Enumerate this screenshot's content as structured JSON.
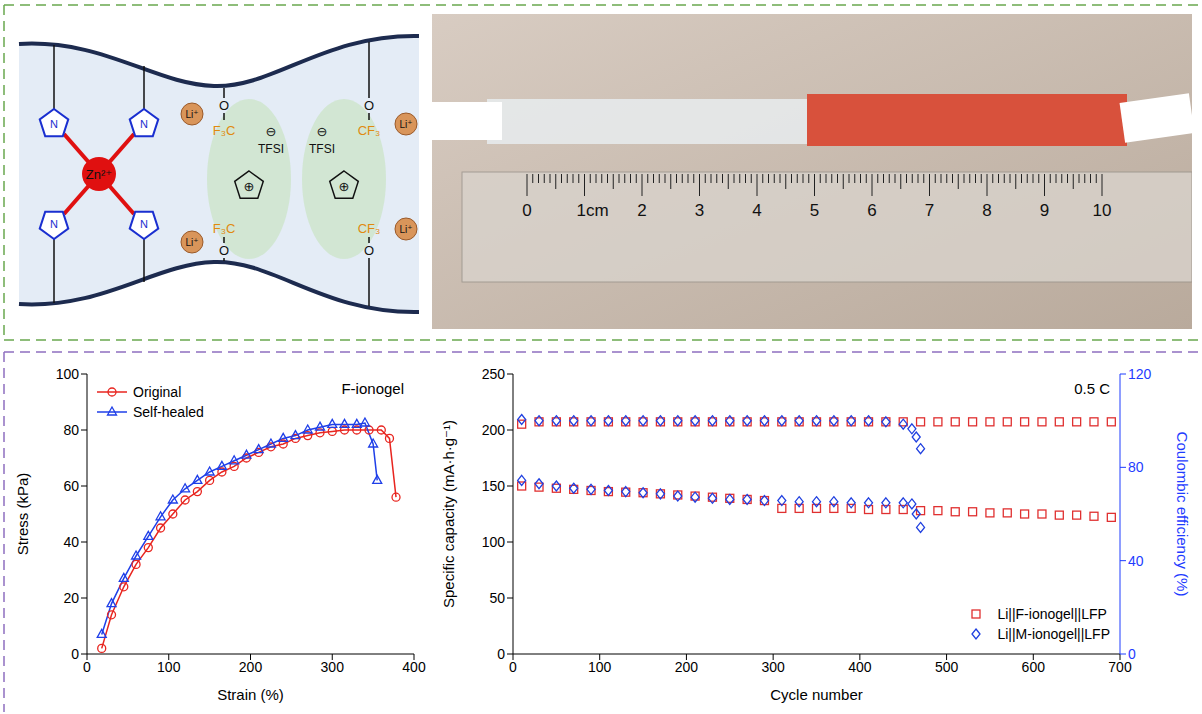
{
  "diagram": {
    "metal_ion": "Zn²⁺",
    "ring_atom": "N",
    "lithium_ion": "Li⁺",
    "anion": "TFSI",
    "anion_charge": "⊖",
    "cation_charge": "⊕",
    "ester_oxygen": "O",
    "left_fluoro": "F₃C",
    "right_fluoro": "CF₃"
  },
  "photo": {
    "ruler_labels": [
      "0",
      "1cm",
      "2",
      "3",
      "4",
      "5",
      "6",
      "7",
      "8",
      "9",
      "10"
    ]
  },
  "chart_data": [
    {
      "type": "line",
      "annotation": "F-ionogel",
      "x_label": "Strain (%)",
      "y_label": "Stress (kPa)",
      "xlim": [
        0,
        400
      ],
      "xticks": [
        0,
        100,
        200,
        300,
        400
      ],
      "ylim": [
        0,
        100
      ],
      "yticks": [
        0,
        20,
        40,
        60,
        80,
        100
      ],
      "legend": "upper left",
      "series": [
        {
          "name": "Original",
          "color": "#e8251f",
          "marker": "circle",
          "line_style": "solid",
          "x": [
            18,
            30,
            45,
            60,
            75,
            90,
            105,
            120,
            135,
            150,
            165,
            180,
            195,
            210,
            225,
            240,
            255,
            270,
            285,
            300,
            315,
            330,
            345,
            360,
            370,
            378
          ],
          "values": [
            2,
            14,
            24,
            32,
            38,
            45,
            50,
            55,
            58,
            62,
            65,
            67,
            70,
            72,
            74,
            75,
            77,
            78,
            79,
            79.5,
            80,
            80,
            80,
            80,
            77,
            56
          ]
        },
        {
          "name": "Self-healed",
          "color": "#1f3fe8",
          "marker": "triangle",
          "line_style": "solid",
          "x": [
            18,
            30,
            45,
            60,
            75,
            90,
            105,
            120,
            135,
            150,
            165,
            180,
            195,
            210,
            225,
            240,
            255,
            270,
            285,
            300,
            315,
            330,
            340,
            350,
            355
          ],
          "values": [
            7,
            18,
            27,
            35,
            42,
            49,
            55,
            59,
            62,
            65,
            67,
            69,
            71,
            73,
            75,
            77,
            78,
            80,
            81,
            82,
            82,
            82,
            82.5,
            75,
            62
          ]
        }
      ]
    },
    {
      "type": "scatter",
      "annotation": "0.5 C",
      "x_label": "Cycle number",
      "y_label": "Specific capacity (mA·h·g⁻¹)",
      "y2_label": "Coulombic efficiency (%)",
      "xlim": [
        0,
        700
      ],
      "xticks": [
        0,
        100,
        200,
        300,
        400,
        500,
        600,
        700
      ],
      "ylim": [
        0,
        250
      ],
      "yticks": [
        0,
        50,
        100,
        150,
        200,
        250
      ],
      "y2lim": [
        0,
        120
      ],
      "y2ticks": [
        0,
        40,
        80,
        120
      ],
      "legend": "lower right",
      "series": [
        {
          "name": "Li||F-ionogel||LFP",
          "color": "#e03030",
          "marker": "square",
          "line_style": "none",
          "x": [
            10,
            30,
            50,
            70,
            90,
            110,
            130,
            150,
            170,
            190,
            210,
            230,
            250,
            270,
            290,
            310,
            330,
            350,
            370,
            390,
            410,
            430,
            450,
            470,
            490,
            510,
            530,
            550,
            570,
            590,
            610,
            630,
            650,
            670,
            690
          ],
          "values": [
            150,
            149,
            148,
            147,
            146,
            145,
            144.5,
            144,
            143,
            142,
            141,
            140,
            139,
            138,
            137,
            130,
            130,
            130,
            130,
            130,
            129,
            129,
            129,
            128,
            128,
            127,
            127,
            126,
            126,
            125,
            125,
            124,
            124,
            123,
            122
          ]
        },
        {
          "name": "Li||F-ionogel||LFP",
          "color": "#e03030",
          "marker": "square",
          "line_style": "none",
          "axis": "y2",
          "x": [
            10,
            30,
            50,
            70,
            90,
            110,
            130,
            150,
            170,
            190,
            210,
            230,
            250,
            270,
            290,
            310,
            330,
            350,
            370,
            390,
            410,
            430,
            450,
            470,
            490,
            510,
            530,
            550,
            570,
            590,
            610,
            630,
            650,
            670,
            690
          ],
          "values": [
            98.5,
            99.5,
            99.5,
            99.5,
            99.5,
            99.5,
            99.5,
            99.5,
            99.5,
            99.5,
            99.5,
            99.5,
            99.5,
            99.5,
            99.5,
            99.5,
            99.5,
            99.5,
            99.5,
            99.5,
            99.5,
            99.5,
            99.5,
            99.5,
            99.5,
            99.5,
            99.5,
            99.5,
            99.5,
            99.5,
            99.5,
            99.5,
            99.5,
            99.5,
            99.5
          ]
        },
        {
          "name": "Li||M-ionogel||LFP",
          "color": "#2040e0",
          "marker": "diamond",
          "line_style": "none",
          "x": [
            10,
            30,
            50,
            70,
            90,
            110,
            130,
            150,
            170,
            190,
            210,
            230,
            250,
            270,
            290,
            310,
            330,
            350,
            370,
            390,
            410,
            430,
            450,
            460,
            465,
            470
          ],
          "values": [
            155,
            152,
            150,
            148,
            147,
            146,
            145,
            144,
            143,
            141,
            140,
            139,
            138,
            138,
            137,
            137,
            136,
            136,
            136,
            135,
            135,
            135,
            135,
            134,
            125,
            113
          ]
        },
        {
          "name": "Li||M-ionogel||LFP",
          "color": "#2040e0",
          "marker": "diamond",
          "line_style": "none",
          "axis": "y2",
          "x": [
            10,
            30,
            50,
            70,
            90,
            110,
            130,
            150,
            170,
            190,
            210,
            230,
            250,
            270,
            290,
            310,
            330,
            350,
            370,
            390,
            410,
            430,
            450,
            460,
            465,
            470
          ],
          "values": [
            100.5,
            100,
            100,
            100,
            100,
            100,
            100,
            100,
            100,
            100,
            100,
            100,
            100,
            100,
            100,
            100,
            100,
            100,
            100,
            100,
            100,
            99.5,
            98.5,
            96.5,
            93,
            88
          ]
        }
      ]
    }
  ]
}
